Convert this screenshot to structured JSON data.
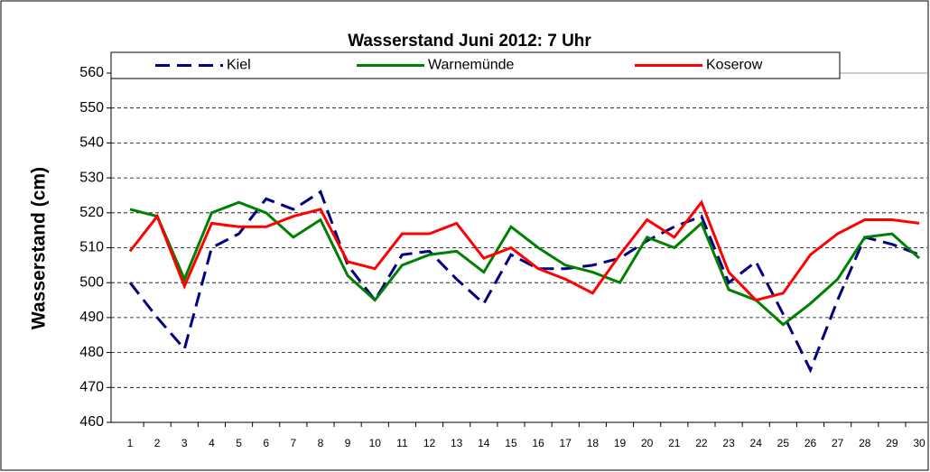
{
  "chart_data": {
    "type": "line",
    "title": "Wasserstand Juni 2012: 7 Uhr",
    "ylabel": "Wasserstand (cm)",
    "categories": [
      "1",
      "2",
      "3",
      "4",
      "5",
      "6",
      "7",
      "8",
      "9",
      "10",
      "11",
      "12",
      "13",
      "14",
      "15",
      "16",
      "17",
      "18",
      "19",
      "20",
      "21",
      "22",
      "23",
      "24",
      "25",
      "26",
      "27",
      "28",
      "29",
      "30"
    ],
    "series": [
      {
        "name": "Kiel",
        "color": "#000080",
        "dashed": true,
        "values": [
          500,
          490,
          481,
          510,
          514,
          524,
          521,
          526,
          505,
          495,
          508,
          509,
          501,
          494,
          508,
          504,
          504,
          505,
          507,
          512,
          516,
          519,
          500,
          506,
          491,
          475,
          495,
          513,
          511,
          508
        ]
      },
      {
        "name": "Warnemünde",
        "color": "#008000",
        "values": [
          521,
          519,
          501,
          520,
          523,
          520,
          513,
          518,
          502,
          495,
          505,
          508,
          509,
          503,
          516,
          510,
          505,
          503,
          500,
          513,
          510,
          517,
          498,
          495,
          488,
          494,
          501,
          513,
          514,
          507
        ]
      },
      {
        "name": "Koserow",
        "color": "#ff0000",
        "values": [
          509,
          519,
          499,
          517,
          516,
          516,
          519,
          521,
          506,
          504,
          514,
          514,
          517,
          507,
          510,
          504,
          501,
          497,
          508,
          518,
          513,
          523,
          503,
          495,
          497,
          508,
          514,
          518,
          518,
          517
        ]
      }
    ],
    "ylim": [
      460,
      560
    ],
    "yticks": [
      460,
      470,
      480,
      490,
      500,
      510,
      520,
      530,
      540,
      550,
      560
    ],
    "grid": true,
    "legend": "top"
  }
}
